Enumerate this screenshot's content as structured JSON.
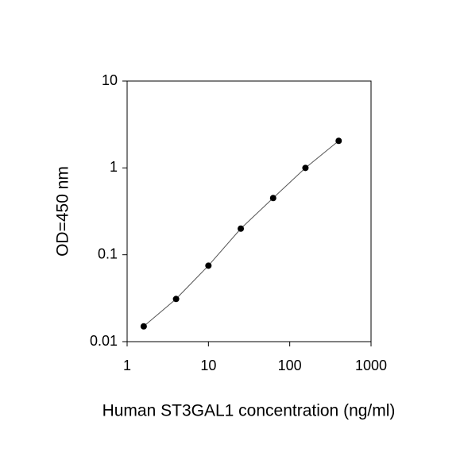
{
  "chart_data": {
    "type": "scatter",
    "x_label": "Human ST3GAL1 concentration (ng/ml)",
    "y_label": "OD=450 nm",
    "x_log": true,
    "y_log": true,
    "connect_points": true,
    "xlim": [
      1,
      1000
    ],
    "xticks": [
      1,
      10,
      100,
      1000
    ],
    "ylim": [
      0.01,
      10
    ],
    "yticks": [
      0.01,
      0.1,
      1,
      10
    ],
    "series": [
      {
        "color": "#000000",
        "line_color": "#555555",
        "x": [
          1.6,
          4,
          10,
          25,
          62.5,
          156,
          400
        ],
        "values": [
          0.015,
          0.031,
          0.075,
          0.2,
          0.45,
          1.0,
          2.05
        ]
      }
    ]
  }
}
